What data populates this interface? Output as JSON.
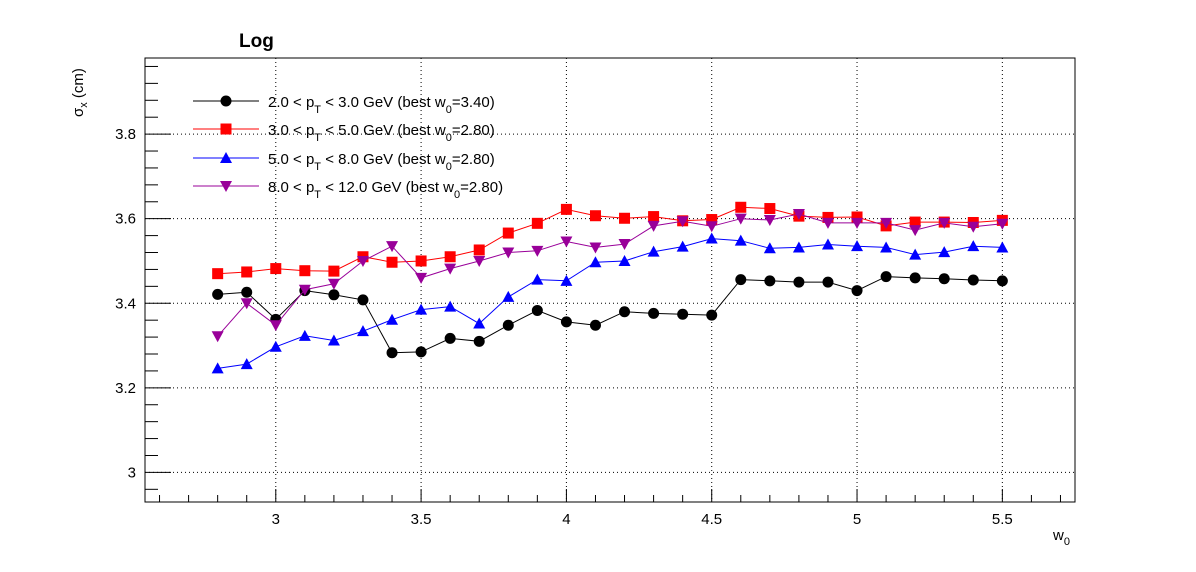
{
  "chart_data": {
    "type": "line",
    "title": "Log",
    "xlabel": "w",
    "xlabel_sub": "0",
    "ylabel": "σ",
    "ylabel_sub": "x",
    "ylabel_unit": "(cm)",
    "xlim": [
      2.55,
      5.75
    ],
    "ylim": [
      2.93,
      3.98
    ],
    "x_ticks": [
      3,
      3.5,
      4,
      4.5,
      5,
      5.5
    ],
    "x_tick_labels": [
      "3",
      "3.5",
      "4",
      "4.5",
      "5",
      "5.5"
    ],
    "y_ticks": [
      3,
      3.2,
      3.4,
      3.6,
      3.8
    ],
    "y_tick_labels": [
      "3",
      "3.2",
      "3.4",
      "3.6",
      "3.8"
    ],
    "grid": true,
    "legend_placement": "top-left",
    "x": [
      2.8,
      2.9,
      3.0,
      3.1,
      3.2,
      3.3,
      3.4,
      3.5,
      3.6,
      3.7,
      3.8,
      3.9,
      4.0,
      4.1,
      4.2,
      4.3,
      4.4,
      4.5,
      4.6,
      4.7,
      4.8,
      4.9,
      5.0,
      5.1,
      5.2,
      5.3,
      5.4,
      5.5
    ],
    "series": [
      {
        "legend": {
          "pre": "2.0 < p",
          "sub1": "T",
          "mid": " < 3.0 GeV (best w",
          "sub2": "0",
          "post": "=3.40)"
        },
        "color": "#000000",
        "marker": "circle",
        "values": [
          3.421,
          3.426,
          3.362,
          3.43,
          3.42,
          3.408,
          3.283,
          3.285,
          3.317,
          3.31,
          3.348,
          3.383,
          3.356,
          3.348,
          3.38,
          3.376,
          3.374,
          3.372,
          3.456,
          3.453,
          3.45,
          3.45,
          3.43,
          3.463,
          3.46,
          3.458,
          3.455,
          3.453
        ]
      },
      {
        "legend": {
          "pre": "3.0 < p",
          "sub1": "T",
          "mid": " < 5.0 GeV (best w",
          "sub2": "0",
          "post": "=2.80)"
        },
        "color": "#ff0000",
        "marker": "square",
        "values": [
          3.47,
          3.474,
          3.482,
          3.477,
          3.476,
          3.51,
          3.497,
          3.5,
          3.51,
          3.526,
          3.566,
          3.589,
          3.622,
          3.607,
          3.601,
          3.605,
          3.595,
          3.598,
          3.627,
          3.624,
          3.606,
          3.603,
          3.604,
          3.583,
          3.592,
          3.592,
          3.591,
          3.596
        ]
      },
      {
        "legend": {
          "pre": "5.0 < p",
          "sub1": "T",
          "mid": " < 8.0 GeV (best w",
          "sub2": "0",
          "post": "=2.80)"
        },
        "color": "#0000ff",
        "marker": "triangle-up",
        "values": [
          3.246,
          3.256,
          3.297,
          3.323,
          3.312,
          3.334,
          3.361,
          3.385,
          3.392,
          3.352,
          3.415,
          3.456,
          3.453,
          3.497,
          3.5,
          3.522,
          3.534,
          3.553,
          3.548,
          3.53,
          3.532,
          3.539,
          3.535,
          3.532,
          3.515,
          3.521,
          3.535,
          3.532
        ]
      },
      {
        "legend": {
          "pre": "8.0 < p",
          "sub1": "T",
          "mid": " < 12.0 GeV (best w",
          "sub2": "0",
          "post": "=2.80)"
        },
        "color": "#990099",
        "marker": "triangle-down",
        "values": [
          3.322,
          3.4,
          3.348,
          3.432,
          3.446,
          3.5,
          3.535,
          3.46,
          3.482,
          3.5,
          3.52,
          3.524,
          3.546,
          3.532,
          3.54,
          3.583,
          3.594,
          3.582,
          3.6,
          3.597,
          3.611,
          3.59,
          3.59,
          3.59,
          3.573,
          3.59,
          3.581,
          3.588
        ]
      }
    ]
  }
}
